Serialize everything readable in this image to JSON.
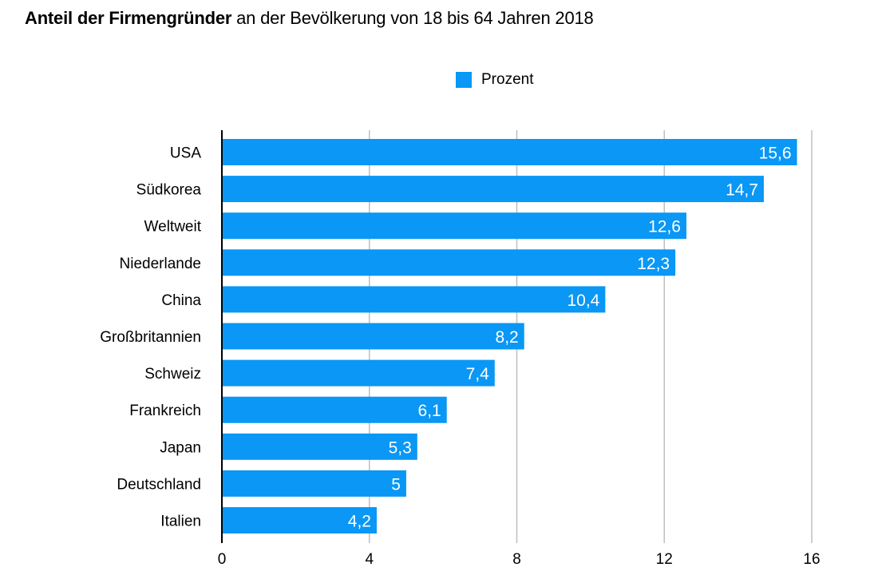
{
  "chart_data": {
    "type": "bar",
    "orientation": "horizontal",
    "title_bold": "Anteil der Firmengründer",
    "title_rest": " an der Bevölkerung von 18 bis 64 Jahren 2018",
    "xlabel": "",
    "ylabel": "",
    "legend": {
      "position": "top-center",
      "entries": [
        "Prozent"
      ]
    },
    "categories": [
      "USA",
      "Südkorea",
      "Weltweit",
      "Niederlande",
      "China",
      "Großbritannien",
      "Schweiz",
      "Frankreich",
      "Japan",
      "Deutschland",
      "Italien"
    ],
    "series": [
      {
        "name": "Prozent",
        "color": "#0a97f5",
        "values": [
          15.6,
          14.7,
          12.6,
          12.3,
          10.4,
          8.2,
          7.4,
          6.1,
          5.3,
          5,
          4.2
        ],
        "labels": [
          "15,6",
          "14,7",
          "12,6",
          "12,3",
          "10,4",
          "8,2",
          "7,4",
          "6,1",
          "5,3",
          "5",
          "4,2"
        ]
      }
    ],
    "xlim": [
      0,
      16
    ],
    "xticks": [
      0,
      4,
      8,
      12,
      16
    ],
    "xtick_labels": [
      "0",
      "4",
      "8",
      "12",
      "16"
    ],
    "grid": true,
    "colors": {
      "bar": "#0a97f5",
      "grid": "#bfbfbf",
      "axis": "#000000"
    }
  }
}
